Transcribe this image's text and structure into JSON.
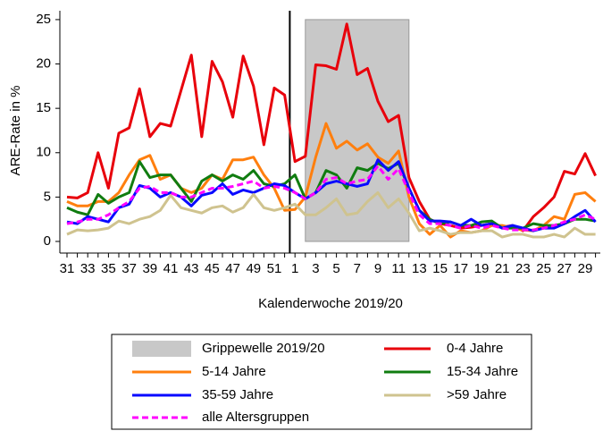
{
  "chart_data": {
    "type": "line",
    "y_label": "ARE-Rate in %",
    "x_label": "Kalenderwoche 2019/20",
    "categories": [
      "31",
      null,
      "33",
      null,
      "35",
      null,
      "37",
      null,
      "39",
      null,
      "41",
      null,
      "43",
      null,
      "45",
      null,
      "47",
      null,
      "49",
      null,
      "51",
      null,
      "1",
      null,
      "3",
      null,
      "5",
      null,
      "7",
      null,
      "9",
      null,
      "11",
      null,
      "13",
      null,
      "15",
      null,
      "17",
      null,
      "19",
      null,
      "21",
      null,
      "23",
      null,
      "25",
      null,
      "27",
      null,
      "29",
      null
    ],
    "ylim": [
      0,
      26
    ],
    "yticks": [
      0,
      5,
      10,
      15,
      20,
      25
    ],
    "band": {
      "name": "Grippewelle 2019/20",
      "color": "#c8c8c8",
      "x": [
        23,
        33
      ]
    },
    "vline_x": 21.5,
    "series": [
      {
        "name": "0-4 Jahre",
        "color": "#e8000b",
        "values": [
          5,
          4.9,
          5.5,
          10,
          6,
          12.2,
          12.8,
          17.2,
          11.8,
          13.3,
          13,
          17,
          21,
          11.8,
          20.3,
          18,
          14,
          20.9,
          17.5,
          10.9,
          17.3,
          16.5,
          9,
          9.6,
          19.9,
          19.8,
          19.4,
          24.5,
          18.8,
          19.5,
          15.8,
          13.5,
          14.2,
          7.2,
          4.5,
          2.5,
          2,
          1.8,
          1.5,
          1.6,
          1.8,
          2,
          1.6,
          1.8,
          1.2,
          2.8,
          3.8,
          5,
          7.9,
          7.6,
          9.9,
          7.4
        ]
      },
      {
        "name": "5-14 Jahre",
        "color": "#ff7f0e",
        "values": [
          4.5,
          4,
          4,
          4.5,
          4.5,
          5.5,
          7.5,
          9.2,
          9.7,
          7,
          7.5,
          6,
          5.5,
          6,
          7.5,
          7,
          9.2,
          9.2,
          9.5,
          7.5,
          6,
          3.5,
          3.6,
          5,
          9.5,
          13.3,
          10.5,
          11.3,
          10.3,
          11,
          9.5,
          8.8,
          10.2,
          5,
          2,
          0.8,
          1.8,
          0.5,
          1.2,
          1,
          1.2,
          1.8,
          1.8,
          1.5,
          1.3,
          1.2,
          1.8,
          2.8,
          2.5,
          5.3,
          5.5,
          4.5
        ]
      },
      {
        "name": "15-34 Jahre",
        "color": "#107c10",
        "values": [
          3.8,
          3.3,
          3,
          5.3,
          4.3,
          5,
          5.5,
          9,
          7.2,
          7.5,
          7.5,
          6,
          4.5,
          6.8,
          7.5,
          6.8,
          7.5,
          7,
          8,
          6.5,
          6.2,
          6.5,
          7.5,
          4.8,
          5.5,
          8,
          7.5,
          6,
          8.3,
          8,
          8.8,
          8.2,
          8.8,
          6,
          3.5,
          2.5,
          2,
          2.2,
          1.8,
          1.8,
          2.2,
          2.3,
          1.5,
          1.5,
          1.5,
          2,
          1.8,
          1.8,
          2,
          2.5,
          2.5,
          2.3
        ]
      },
      {
        "name": "35-59 Jahre",
        "color": "#0a0aff",
        "values": [
          2.2,
          2,
          2.8,
          2.5,
          2.2,
          3.8,
          4.2,
          6.3,
          6,
          5,
          5.5,
          5,
          4,
          5.2,
          5.5,
          6.5,
          5.3,
          5.8,
          5.5,
          6,
          6.5,
          6.3,
          5.5,
          4.8,
          5.5,
          6.5,
          6.8,
          6.5,
          6.2,
          6.5,
          9.2,
          8,
          9,
          6,
          3.5,
          2.3,
          2.3,
          2.2,
          1.8,
          2.5,
          1.8,
          2,
          1.5,
          1.8,
          1.5,
          1.2,
          1.5,
          1.5,
          2,
          2.8,
          3.5,
          2.2
        ]
      },
      {
        "name": ">59 Jahre",
        "color": "#cfc38f",
        "values": [
          0.8,
          1.3,
          1.2,
          1.3,
          1.5,
          2.3,
          2,
          2.5,
          2.8,
          3.5,
          5.2,
          3.8,
          3.5,
          3.2,
          3.8,
          4,
          3.3,
          3.8,
          5.3,
          3.8,
          3.5,
          3.8,
          4.2,
          3,
          3,
          3.8,
          4.8,
          3,
          3.2,
          4.5,
          5.5,
          3.8,
          4.8,
          3.2,
          1.2,
          1.5,
          1.2,
          0.8,
          1,
          1,
          1.2,
          1.2,
          0.5,
          0.8,
          0.8,
          0.5,
          0.5,
          0.8,
          0.5,
          1.5,
          0.8,
          0.8
        ]
      },
      {
        "name": "alle Altersgruppen",
        "color": "#ff00ff",
        "dashed": true,
        "values": [
          2,
          2.2,
          2.5,
          2.5,
          3,
          3.8,
          4.5,
          6,
          6.2,
          5.5,
          5.5,
          5,
          5,
          5.5,
          6,
          6,
          6.2,
          6.5,
          6.8,
          6,
          6.2,
          6,
          5.5,
          4.8,
          5.5,
          7,
          7.2,
          6.5,
          6.8,
          7,
          8.5,
          7,
          8.2,
          5.5,
          3,
          2,
          2,
          1.8,
          1.5,
          1.8,
          1.5,
          1.8,
          1.5,
          1.3,
          1.3,
          1.3,
          1.5,
          1.8,
          2.2,
          2.5,
          3,
          2.5
        ]
      }
    ]
  }
}
